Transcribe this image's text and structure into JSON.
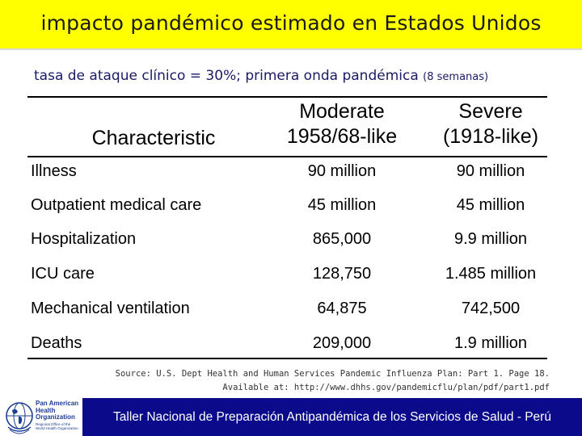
{
  "title": "impacto pandémico estimado en Estados Unidos",
  "subtitle": {
    "main": "tasa de ataque clínico = 30%; primera onda pandémica",
    "note": "(8 semanas)"
  },
  "table": {
    "headers": {
      "characteristic": "Characteristic",
      "moderate_line1": "Moderate",
      "moderate_line2": "1958/68-like",
      "severe_line1": "Severe",
      "severe_line2": "(1918-like)"
    },
    "rows": [
      {
        "characteristic": "Illness",
        "moderate": "90 million",
        "severe": "90 million"
      },
      {
        "characteristic": "Outpatient medical care",
        "moderate": "45 million",
        "severe": "45 million"
      },
      {
        "characteristic": "Hospitalization",
        "moderate": "865,000",
        "severe": "9.9 million"
      },
      {
        "characteristic": "ICU care",
        "moderate": "128,750",
        "severe": "1.485 million"
      },
      {
        "characteristic": "Mechanical ventilation",
        "moderate": "64,875",
        "severe": "742,500"
      },
      {
        "characteristic": "Deaths",
        "moderate": "209,000",
        "severe": "1.9 million"
      }
    ]
  },
  "source": {
    "line1": "Source: U.S. Dept Health and Human Services Pandemic Influenza Plan: Part 1. Page 18.",
    "line2": "Available at: http://www.dhhs.gov/pandemicflu/plan/pdf/part1.pdf"
  },
  "logo": {
    "org_line1": "Pan American",
    "org_line2": "Health",
    "org_line3": "Organization",
    "who_line1": "Regional Office of the",
    "who_line2": "World Health Organization"
  },
  "footer": "Taller Nacional de Preparación Antipandémica de los Servicios de Salud - Perú",
  "colors": {
    "title_bar": "#ffff00",
    "footer_bg": "#0a0a8a",
    "footer_text": "#ffffff",
    "subtitle_text": "#1a1a66",
    "logo_blue": "#1c3f94"
  }
}
